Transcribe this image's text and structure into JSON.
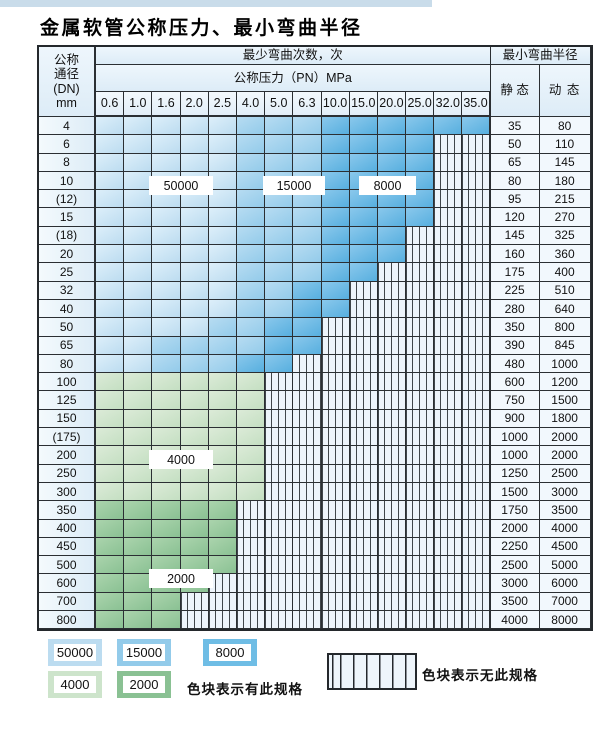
{
  "title": "金属软管公称压力、最小弯曲半径",
  "table": {
    "corner_header": [
      "公称",
      "通径",
      "(DN)",
      "mm"
    ],
    "bend_cycles_header": "最少弯曲次数，次",
    "pressure_header": "公称压力（PN）MPa",
    "pressure_columns": [
      "0.6",
      "1.0",
      "1.6",
      "2.0",
      "2.5",
      "4.0",
      "5.0",
      "6.3",
      "10.0",
      "15.0",
      "20.0",
      "25.0",
      "32.0",
      "35.0"
    ],
    "radius_header": "最小弯曲半径",
    "static_header": "静 态",
    "dynamic_header": "动 态",
    "rows": [
      {
        "dn": "4",
        "zone": "blue",
        "m": 5,
        "d": 8,
        "h": 14,
        "static": "35",
        "dynamic": "80"
      },
      {
        "dn": "6",
        "zone": "blue",
        "m": 5,
        "d": 8,
        "h": 12,
        "static": "50",
        "dynamic": "110"
      },
      {
        "dn": "8",
        "zone": "blue",
        "m": 5,
        "d": 8,
        "h": 12,
        "static": "65",
        "dynamic": "145"
      },
      {
        "dn": "10",
        "zone": "blue",
        "m": 5,
        "d": 8,
        "h": 12,
        "static": "80",
        "dynamic": "180"
      },
      {
        "dn": "(12)",
        "zone": "blue",
        "m": 5,
        "d": 8,
        "h": 12,
        "static": "95",
        "dynamic": "215"
      },
      {
        "dn": "15",
        "zone": "blue",
        "m": 5,
        "d": 8,
        "h": 12,
        "static": "120",
        "dynamic": "270"
      },
      {
        "dn": "(18)",
        "zone": "blue",
        "m": 5,
        "d": 8,
        "h": 11,
        "static": "145",
        "dynamic": "325"
      },
      {
        "dn": "20",
        "zone": "blue",
        "m": 5,
        "d": 8,
        "h": 11,
        "static": "160",
        "dynamic": "360"
      },
      {
        "dn": "25",
        "zone": "blue",
        "m": 5,
        "d": 8,
        "h": 10,
        "static": "175",
        "dynamic": "400"
      },
      {
        "dn": "32",
        "zone": "blue",
        "m": 5,
        "d": 7,
        "h": 9,
        "static": "225",
        "dynamic": "510"
      },
      {
        "dn": "40",
        "zone": "blue",
        "m": 5,
        "d": 7,
        "h": 9,
        "static": "280",
        "dynamic": "640"
      },
      {
        "dn": "50",
        "zone": "blue",
        "m": 4,
        "d": 6,
        "h": 8,
        "static": "350",
        "dynamic": "800"
      },
      {
        "dn": "65",
        "zone": "blue",
        "m": 2,
        "d": 6,
        "h": 8,
        "static": "390",
        "dynamic": "845"
      },
      {
        "dn": "80",
        "zone": "blue",
        "m": 2,
        "d": 5,
        "h": 7,
        "static": "480",
        "dynamic": "1000"
      },
      {
        "dn": "100",
        "zone": "lg",
        "h": 6,
        "static": "600",
        "dynamic": "1200"
      },
      {
        "dn": "125",
        "zone": "lg",
        "h": 6,
        "static": "750",
        "dynamic": "1500"
      },
      {
        "dn": "150",
        "zone": "lg",
        "h": 6,
        "static": "900",
        "dynamic": "1800"
      },
      {
        "dn": "(175)",
        "zone": "lg",
        "h": 6,
        "static": "1000",
        "dynamic": "2000"
      },
      {
        "dn": "200",
        "zone": "lg",
        "h": 6,
        "static": "1000",
        "dynamic": "2000"
      },
      {
        "dn": "250",
        "zone": "lg",
        "h": 6,
        "static": "1250",
        "dynamic": "2500"
      },
      {
        "dn": "300",
        "zone": "lg",
        "h": 6,
        "static": "1500",
        "dynamic": "3000"
      },
      {
        "dn": "350",
        "zone": "mg",
        "h": 5,
        "static": "1750",
        "dynamic": "3500"
      },
      {
        "dn": "400",
        "zone": "mg",
        "h": 5,
        "static": "2000",
        "dynamic": "4000"
      },
      {
        "dn": "450",
        "zone": "mg",
        "h": 5,
        "static": "2250",
        "dynamic": "4500"
      },
      {
        "dn": "500",
        "zone": "mg",
        "h": 5,
        "static": "2500",
        "dynamic": "5000"
      },
      {
        "dn": "600",
        "zone": "mg",
        "h": 4,
        "static": "3000",
        "dynamic": "6000"
      },
      {
        "dn": "700",
        "zone": "mg",
        "h": 3,
        "static": "3500",
        "dynamic": "7000"
      },
      {
        "dn": "800",
        "zone": "mg",
        "h": 3,
        "static": "4000",
        "dynamic": "8000"
      }
    ]
  },
  "overlay_labels": {
    "cycles_50000": "50000",
    "cycles_15000": "15000",
    "cycles_8000": "8000",
    "cycles_4000": "4000",
    "cycles_2000": "2000"
  },
  "legend": {
    "items": [
      {
        "value": "50000",
        "color": "#bcdcf0"
      },
      {
        "value": "15000",
        "color": "#93cbea"
      },
      {
        "value": "8000",
        "color": "#6fbde5"
      },
      {
        "value": "4000",
        "color": "#cde4cb"
      },
      {
        "value": "2000",
        "color": "#8ac193"
      }
    ],
    "present_text": "色块表示有此规格",
    "absent_text": "色块表示无此规格"
  },
  "colors": {
    "light_blue": "#c9e2f3",
    "medium_blue": "#a3d2ee",
    "dark_blue": "#6fbce6",
    "light_green": "#cfe5cd",
    "medium_green": "#98c99c",
    "hatch_bg": "#edf4fb",
    "border": "#2b2f33",
    "top_strip": "#c9dcea"
  }
}
